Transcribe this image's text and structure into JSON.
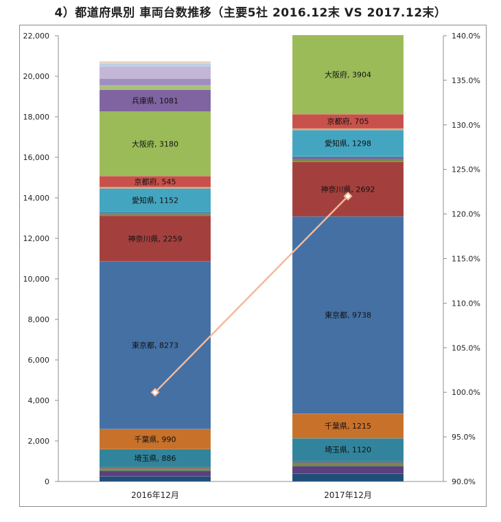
{
  "title": "4）都道府県別 車両台数推移（主要5社 2016.12末 VS 2017.12末）",
  "chart_data": {
    "type": "bar",
    "stacked": true,
    "title": "4）都道府県別 車両台数推移（主要5社 2016.12末 VS 2017.12末）",
    "categories": [
      "2016年12月",
      "2017年12月"
    ],
    "ylim": [
      0,
      22000
    ],
    "yticks": [
      "0",
      "2,000",
      "4,000",
      "6,000",
      "8,000",
      "10,000",
      "12,000",
      "14,000",
      "16,000",
      "18,000",
      "20,000",
      "22,000"
    ],
    "y2lim": [
      90,
      140
    ],
    "y2ticks": [
      "90.0%",
      "95.0%",
      "100.0%",
      "105.0%",
      "110.0%",
      "115.0%",
      "120.0%",
      "125.0%",
      "130.0%",
      "135.0%",
      "140.0%"
    ],
    "grid": false,
    "series": [
      {
        "name": "",
        "color": "#1f4e79",
        "values": [
          250,
          380
        ]
      },
      {
        "name": "",
        "color": "#5b3f7e",
        "values": [
          280,
          380
        ]
      },
      {
        "name": "",
        "color": "#4e8c3a",
        "values": [
          60,
          90
        ]
      },
      {
        "name": "",
        "color": "#b85c38",
        "values": [
          60,
          80
        ]
      },
      {
        "name": "",
        "color": "#2e6b8a",
        "values": [
          60,
          80
        ]
      },
      {
        "name": "埼玉県",
        "color": "#31849b",
        "values": [
          886,
          1120
        ]
      },
      {
        "name": "千葉県",
        "color": "#c8712b",
        "values": [
          990,
          1215
        ]
      },
      {
        "name": "東京都",
        "color": "#4470a3",
        "values": [
          8273,
          9738
        ]
      },
      {
        "name": "神奈川県",
        "color": "#a3403d",
        "values": [
          2259,
          2692
        ]
      },
      {
        "name": "",
        "color": "#7a8a3c",
        "values": [
          70,
          100
        ]
      },
      {
        "name": "",
        "color": "#6b5a8e",
        "values": [
          60,
          90
        ]
      },
      {
        "name": "",
        "color": "#3a7ea0",
        "values": [
          60,
          80
        ]
      },
      {
        "name": "愛知県",
        "color": "#44a5c0",
        "values": [
          1152,
          1298
        ]
      },
      {
        "name": "",
        "color": "#e0a070",
        "values": [
          70,
          80
        ]
      },
      {
        "name": "京都府",
        "color": "#c9514b",
        "values": [
          545,
          705
        ]
      },
      {
        "name": "大阪府",
        "color": "#9bbb59",
        "values": [
          3180,
          3904
        ]
      },
      {
        "name": "兵庫県",
        "color": "#8064a2",
        "values": [
          1081,
          0
        ]
      },
      {
        "name": "",
        "color": "#a9c27a",
        "values": [
          200,
          0
        ]
      },
      {
        "name": "",
        "color": "#9f8fc0",
        "values": [
          350,
          0
        ]
      },
      {
        "name": "",
        "color": "#c3b6d6",
        "values": [
          600,
          0
        ]
      },
      {
        "name": "",
        "color": "#b9cfe4",
        "values": [
          150,
          0
        ]
      },
      {
        "name": "",
        "color": "#e7d4c2",
        "values": [
          104,
          0
        ]
      }
    ],
    "line_series": {
      "name": "",
      "axis": "right",
      "color": "#f4b99a",
      "values": [
        100.0,
        122.0
      ]
    }
  }
}
